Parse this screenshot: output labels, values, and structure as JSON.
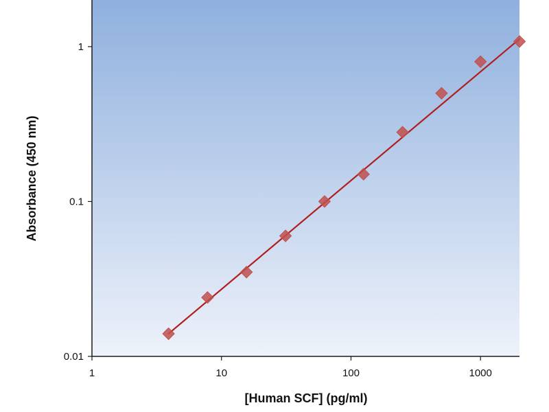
{
  "chart_data": {
    "type": "scatter",
    "title": "",
    "xlabel": "[Human SCF] (pg/ml)",
    "ylabel": "Absorbance (450 nm)",
    "x_scale": "log",
    "y_scale": "log",
    "xlim": [
      1,
      2000
    ],
    "ylim": [
      0.01,
      2
    ],
    "x_ticks": [
      {
        "value": 1,
        "label": "1"
      },
      {
        "value": 10,
        "label": "10"
      },
      {
        "value": 100,
        "label": "100"
      },
      {
        "value": 1000,
        "label": "1000"
      }
    ],
    "y_ticks": [
      {
        "value": 0.01,
        "label": "0.01"
      },
      {
        "value": 0.1,
        "label": "0.1"
      },
      {
        "value": 1,
        "label": "1"
      }
    ],
    "grid": false,
    "legend": "none",
    "series": [
      {
        "marker": "diamond",
        "x": [
          3.9,
          7.8,
          15.6,
          31.25,
          62.5,
          125,
          250,
          500,
          1000,
          2000
        ],
        "y": [
          0.014,
          0.024,
          0.035,
          0.06,
          0.1,
          0.15,
          0.28,
          0.5,
          0.8,
          1.08
        ]
      }
    ],
    "fit_line": {
      "x": [
        3.9,
        2000
      ],
      "y": [
        0.014,
        1.12
      ]
    },
    "colors": {
      "plot_bg_top": "#8fb0de",
      "plot_bg_bottom": "#eef2fa",
      "marker": "#c0504d",
      "fit_line": "#b01e1e",
      "axis": "#1a1a1a"
    }
  }
}
